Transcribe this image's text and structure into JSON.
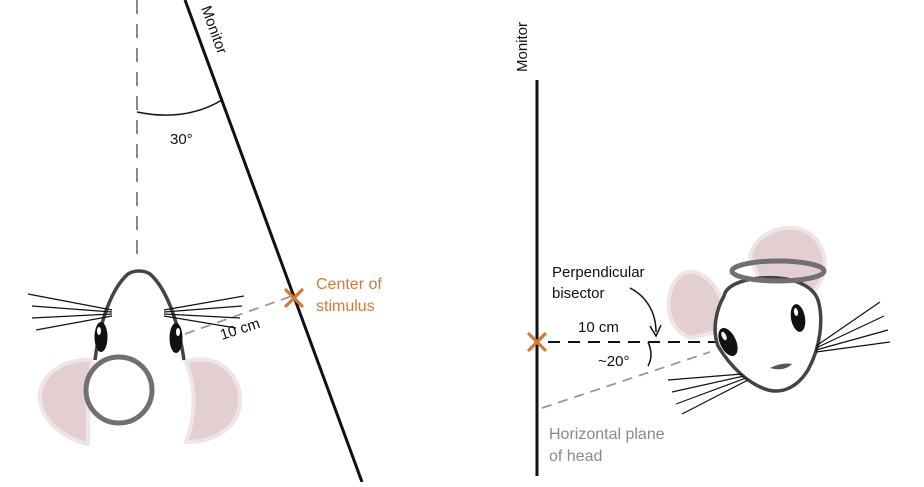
{
  "left_panel": {
    "monitor_label": "Monitor",
    "angle_label": "30°",
    "distance_label": "10 cm",
    "stimulus_label_line1": "Center of",
    "stimulus_label_line2": "stimulus"
  },
  "right_panel": {
    "monitor_label": "Monitor",
    "distance_label": "10 cm",
    "angle_label": "~20°",
    "bisector_label_line1": "Perpendicular",
    "bisector_label_line2": "bisector",
    "plane_label_line1": "Horizontal plane",
    "plane_label_line2": "of head"
  },
  "colors": {
    "stimulus_marker": "#d07a3a",
    "ear_fill": "#e3cfd1",
    "ear_outline": "#f0e4e5",
    "ring": "#707070",
    "dashed_line": "#888888"
  },
  "icons": {
    "stimulus_marker": "x-mark-icon",
    "mouse_left": "mouse-top-view",
    "mouse_right": "mouse-front-tilted-view"
  }
}
